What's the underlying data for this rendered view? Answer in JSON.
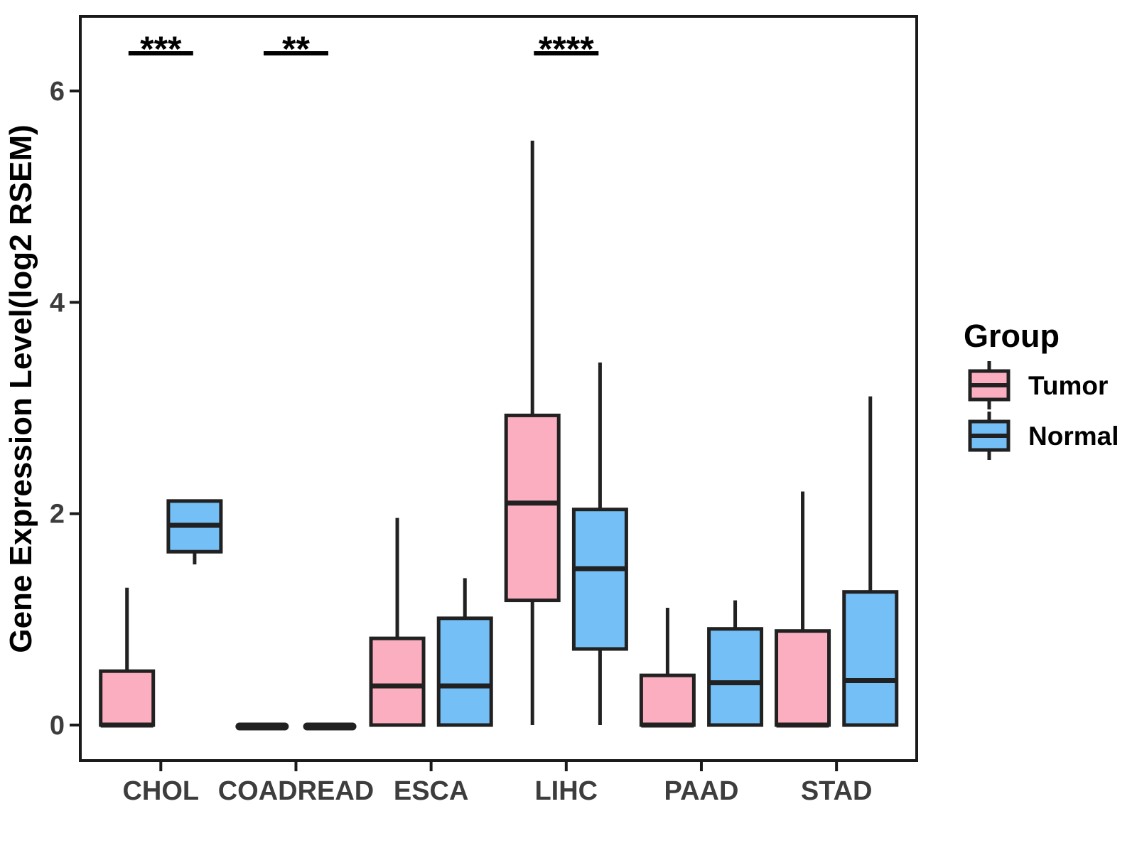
{
  "chart_data": {
    "type": "boxplot",
    "title": "",
    "xlabel": "",
    "ylabel": "Gene Expression Level(log2 RSEM)",
    "ylim": [
      -0.3,
      6.7
    ],
    "yticks": [
      0,
      2,
      4,
      6
    ],
    "grid": false,
    "legend_position": "right",
    "categories": [
      "CHOL",
      "COADREAD",
      "ESCA",
      "LIHC",
      "PAAD",
      "STAD"
    ],
    "series": [
      {
        "name": "Tumor",
        "color": "#FBAEC0",
        "boxes": [
          {
            "min": 0,
            "q1": 0,
            "median": 0,
            "q3": 0.51,
            "max": 1.3
          },
          {
            "min": 0,
            "q1": 0,
            "median": 0,
            "q3": 0,
            "max": 0
          },
          {
            "min": 0,
            "q1": 0,
            "median": 0.37,
            "q3": 0.82,
            "max": 1.96
          },
          {
            "min": 0,
            "q1": 1.18,
            "median": 2.1,
            "q3": 2.93,
            "max": 5.53
          },
          {
            "min": 0,
            "q1": 0,
            "median": 0,
            "q3": 0.47,
            "max": 1.11
          },
          {
            "min": 0,
            "q1": 0,
            "median": 0,
            "q3": 0.89,
            "max": 2.21
          }
        ]
      },
      {
        "name": "Normal",
        "color": "#73BFF6",
        "boxes": [
          {
            "min": 1.52,
            "q1": 1.64,
            "median": 1.89,
            "q3": 2.12,
            "max": 2.12
          },
          {
            "min": 0,
            "q1": 0,
            "median": 0,
            "q3": 0,
            "max": 0
          },
          {
            "min": 0,
            "q1": 0,
            "median": 0.37,
            "q3": 1.01,
            "max": 1.39
          },
          {
            "min": 0,
            "q1": 0.72,
            "median": 1.48,
            "q3": 2.04,
            "max": 3.43
          },
          {
            "min": 0,
            "q1": 0,
            "median": 0.4,
            "q3": 0.91,
            "max": 1.18
          },
          {
            "min": 0,
            "q1": 0,
            "median": 0.42,
            "q3": 1.26,
            "max": 3.11
          }
        ]
      }
    ],
    "significance": [
      {
        "category": "CHOL",
        "label": "***"
      },
      {
        "category": "COADREAD",
        "label": "**"
      },
      {
        "category": "LIHC",
        "label": "****"
      }
    ]
  },
  "legend": {
    "title": "Group",
    "entries": [
      {
        "label": "Tumor",
        "color": "#FBAEC0"
      },
      {
        "label": "Normal",
        "color": "#73BFF6"
      }
    ]
  },
  "colors": {
    "tumor_fill": "#FBAEC0",
    "normal_fill": "#73BFF6",
    "box_stroke": "#212121",
    "axis": "#1a1a1a",
    "tick_label": "#3d3d3d",
    "text": "#000000"
  }
}
